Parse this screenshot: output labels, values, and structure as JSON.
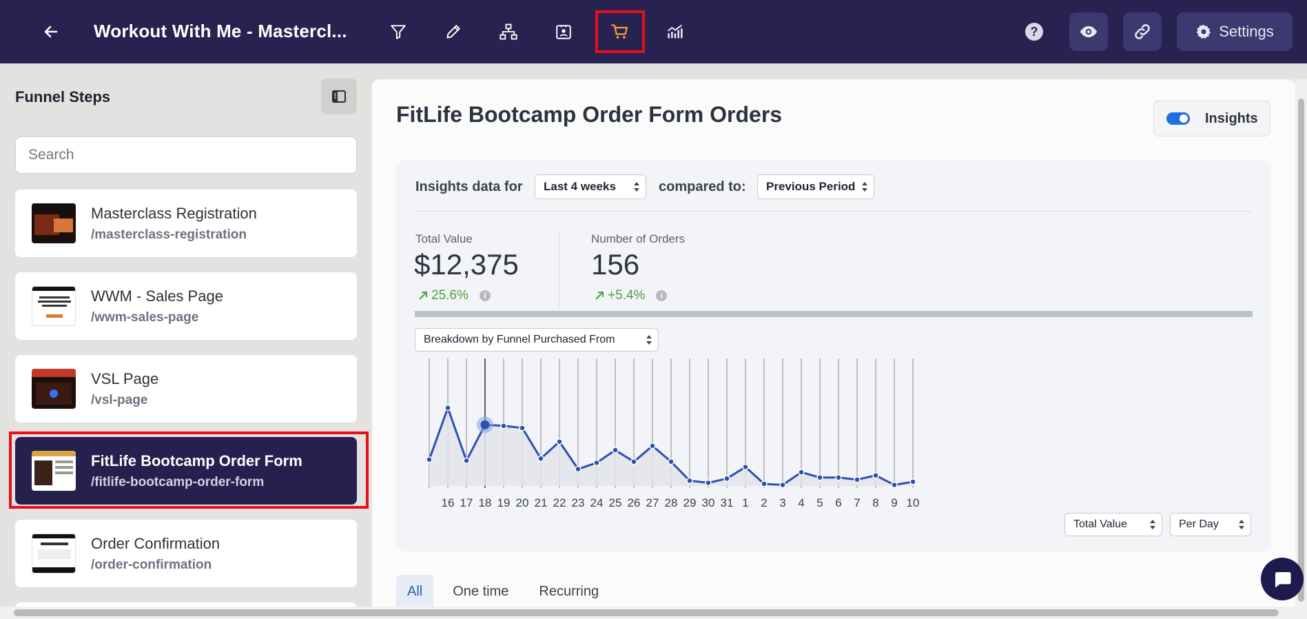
{
  "topbar": {
    "title": "Workout With Me - Mastercl...",
    "icons": [
      "back-arrow-icon",
      "filter-icon",
      "pencil-icon",
      "sitemap-icon",
      "contact-card-icon",
      "cart-icon",
      "analytics-icon",
      "help-icon",
      "eye-icon",
      "link-icon",
      "gear-icon"
    ],
    "help_label": "?",
    "settings_label": "Settings"
  },
  "sidebar": {
    "title": "Funnel Steps",
    "search_placeholder": "Search",
    "steps": [
      {
        "name": "Masterclass Registration",
        "path": "/masterclass-registration"
      },
      {
        "name": "WWM - Sales Page",
        "path": "/wwm-sales-page"
      },
      {
        "name": "VSL Page",
        "path": "/vsl-page"
      },
      {
        "name": "FitLife Bootcamp Order Form",
        "path": "/fitlife-bootcamp-order-form"
      },
      {
        "name": "Order Confirmation",
        "path": "/order-confirmation"
      }
    ],
    "active_index": 3
  },
  "main": {
    "title": "FitLife Bootcamp Order Form Orders",
    "insights_toggle_label": "Insights",
    "insights_on": true,
    "insights_data_for_label": "Insights data for",
    "period_select": "Last 4 weeks",
    "compared_to_label": "compared to:",
    "compare_select": "Previous Period",
    "kpis": [
      {
        "label": "Total Value",
        "value": "$12,375",
        "change": "25.6%"
      },
      {
        "label": "Number of Orders",
        "value": "156",
        "change": "+5.4%"
      }
    ],
    "breakdown_select": "Breakdown by Funnel Purchased From",
    "metric_select": "Total Value",
    "interval_select": "Per Day",
    "tabs": [
      "All",
      "One time",
      "Recurring"
    ],
    "active_tab": 0
  },
  "chart_data": {
    "type": "line",
    "x": [
      "16",
      "17",
      "18",
      "19",
      "20",
      "21",
      "22",
      "23",
      "24",
      "25",
      "26",
      "27",
      "28",
      "29",
      "30",
      "31",
      "1",
      "2",
      "3",
      "4",
      "5",
      "6",
      "7",
      "8",
      "9",
      "10"
    ],
    "values": [
      0.74,
      0.24,
      0.58,
      0.57,
      0.55,
      0.26,
      0.42,
      0.16,
      0.22,
      0.34,
      0.23,
      0.38,
      0.23,
      0.05,
      0.03,
      0.07,
      0.18,
      0.02,
      0.01,
      0.13,
      0.08,
      0.08,
      0.06,
      0.1,
      0.01,
      0.04
    ],
    "leading_value": 0.25,
    "highlight_index": 2,
    "color": "#2e4fb0",
    "grid": true
  },
  "colors": {
    "topbar": "#27224f",
    "active_step": "#25204d",
    "accent": "#1f6fe0",
    "positive": "#4e9f3d",
    "highlight_outline": "#e3101b"
  }
}
